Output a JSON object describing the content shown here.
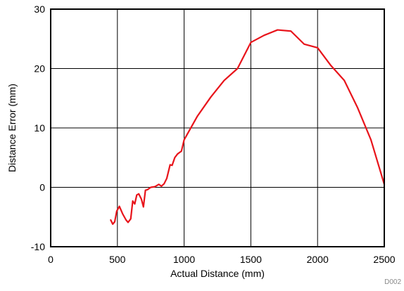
{
  "figure_id": "D002",
  "chart_data": {
    "type": "line",
    "title": "",
    "xlabel": "Actual Distance (mm)",
    "ylabel": "Distance Error (mm)",
    "xlim": [
      0,
      2500
    ],
    "ylim": [
      -10,
      30
    ],
    "xticks": [
      0,
      500,
      1000,
      1500,
      2000,
      2500
    ],
    "yticks": [
      -10,
      0,
      10,
      20,
      30
    ],
    "xtick_labels": [
      "0",
      "500",
      "1000",
      "1500",
      "2000",
      "2500"
    ],
    "ytick_labels": [
      "-10",
      "0",
      "10",
      "20",
      "30"
    ],
    "grid": true,
    "legend": "none",
    "series": [
      {
        "color": "#e8141b",
        "x": [
          450,
          465,
          480,
          495,
          515,
          540,
          565,
          580,
          600,
          615,
          630,
          645,
          660,
          680,
          695,
          710,
          725,
          750,
          780,
          810,
          830,
          850,
          870,
          895,
          910,
          930,
          950,
          980,
          1000,
          1100,
          1200,
          1300,
          1400,
          1500,
          1600,
          1700,
          1800,
          1900,
          2000,
          2100,
          2200,
          2300,
          2400,
          2500
        ],
        "y": [
          -5.5,
          -6.2,
          -5.8,
          -4.0,
          -3.2,
          -4.5,
          -5.5,
          -5.9,
          -5.3,
          -2.3,
          -2.8,
          -1.3,
          -1.1,
          -2.0,
          -3.3,
          -0.5,
          -0.4,
          0.0,
          0.1,
          0.5,
          0.2,
          0.6,
          1.5,
          3.8,
          3.7,
          5.0,
          5.6,
          6.1,
          8.0,
          12.0,
          15.2,
          18.0,
          20.0,
          24.4,
          25.6,
          26.5,
          26.3,
          24.1,
          23.5,
          20.5,
          18.0,
          13.4,
          8.0,
          0.5
        ]
      }
    ]
  }
}
